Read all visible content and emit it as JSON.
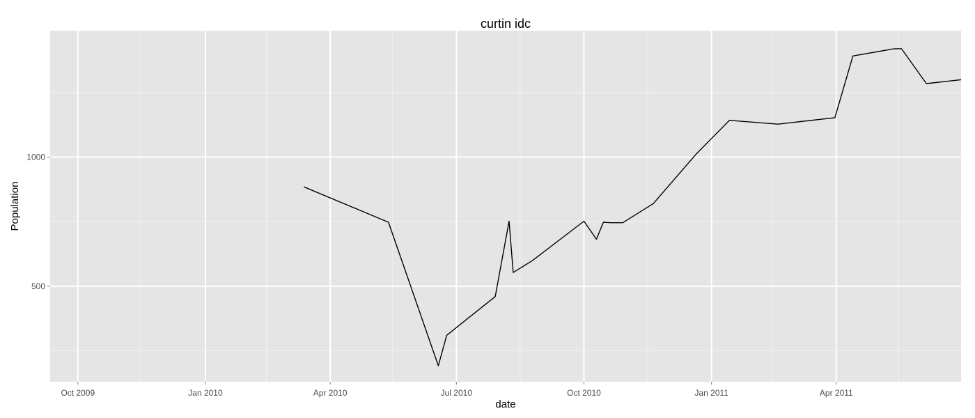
{
  "chart_data": {
    "type": "line",
    "title": "curtin idc",
    "xlabel": "date",
    "ylabel": "Population",
    "x_axis_type": "date",
    "xlim": [
      "2009-09-11",
      "2011-06-30"
    ],
    "ylim": [
      130,
      1490
    ],
    "grid": true,
    "legend": "none",
    "x_ticks": [
      {
        "date": "2009-10-01",
        "label": "Oct 2009"
      },
      {
        "date": "2010-01-01",
        "label": "Jan 2010"
      },
      {
        "date": "2010-04-01",
        "label": "Apr 2010"
      },
      {
        "date": "2010-07-01",
        "label": "Jul 2010"
      },
      {
        "date": "2010-10-01",
        "label": "Oct 2010"
      },
      {
        "date": "2011-01-01",
        "label": "Jan 2011"
      },
      {
        "date": "2011-04-01",
        "label": "Apr 2011"
      }
    ],
    "x_minor_ticks": [
      "2009-11-15",
      "2010-02-14",
      "2010-05-16",
      "2010-08-16",
      "2010-11-16",
      "2011-02-14",
      "2011-05-16"
    ],
    "y_ticks": [
      {
        "value": 500,
        "label": "500"
      },
      {
        "value": 1000,
        "label": "1000"
      }
    ],
    "y_minor_ticks": [
      250,
      750,
      1250
    ],
    "series": [
      {
        "color": "#000000",
        "x": [
          "2010-03-13",
          "2010-05-13",
          "2010-06-18",
          "2010-06-24",
          "2010-07-29",
          "2010-08-08",
          "2010-08-11",
          "2010-08-25",
          "2010-10-01",
          "2010-10-10",
          "2010-10-15",
          "2010-10-20",
          "2010-10-29",
          "2010-11-20",
          "2010-12-21",
          "2011-01-14",
          "2011-01-20",
          "2011-02-18",
          "2011-03-31",
          "2011-04-13",
          "2011-05-13",
          "2011-05-18",
          "2011-06-05",
          "2011-06-30"
        ],
        "values": [
          885,
          748,
          192,
          310,
          460,
          752,
          553,
          600,
          752,
          682,
          748,
          746,
          746,
          820,
          1012,
          1143,
          1140,
          1128,
          1153,
          1392,
          1420,
          1420,
          1285,
          1300
        ]
      }
    ]
  }
}
